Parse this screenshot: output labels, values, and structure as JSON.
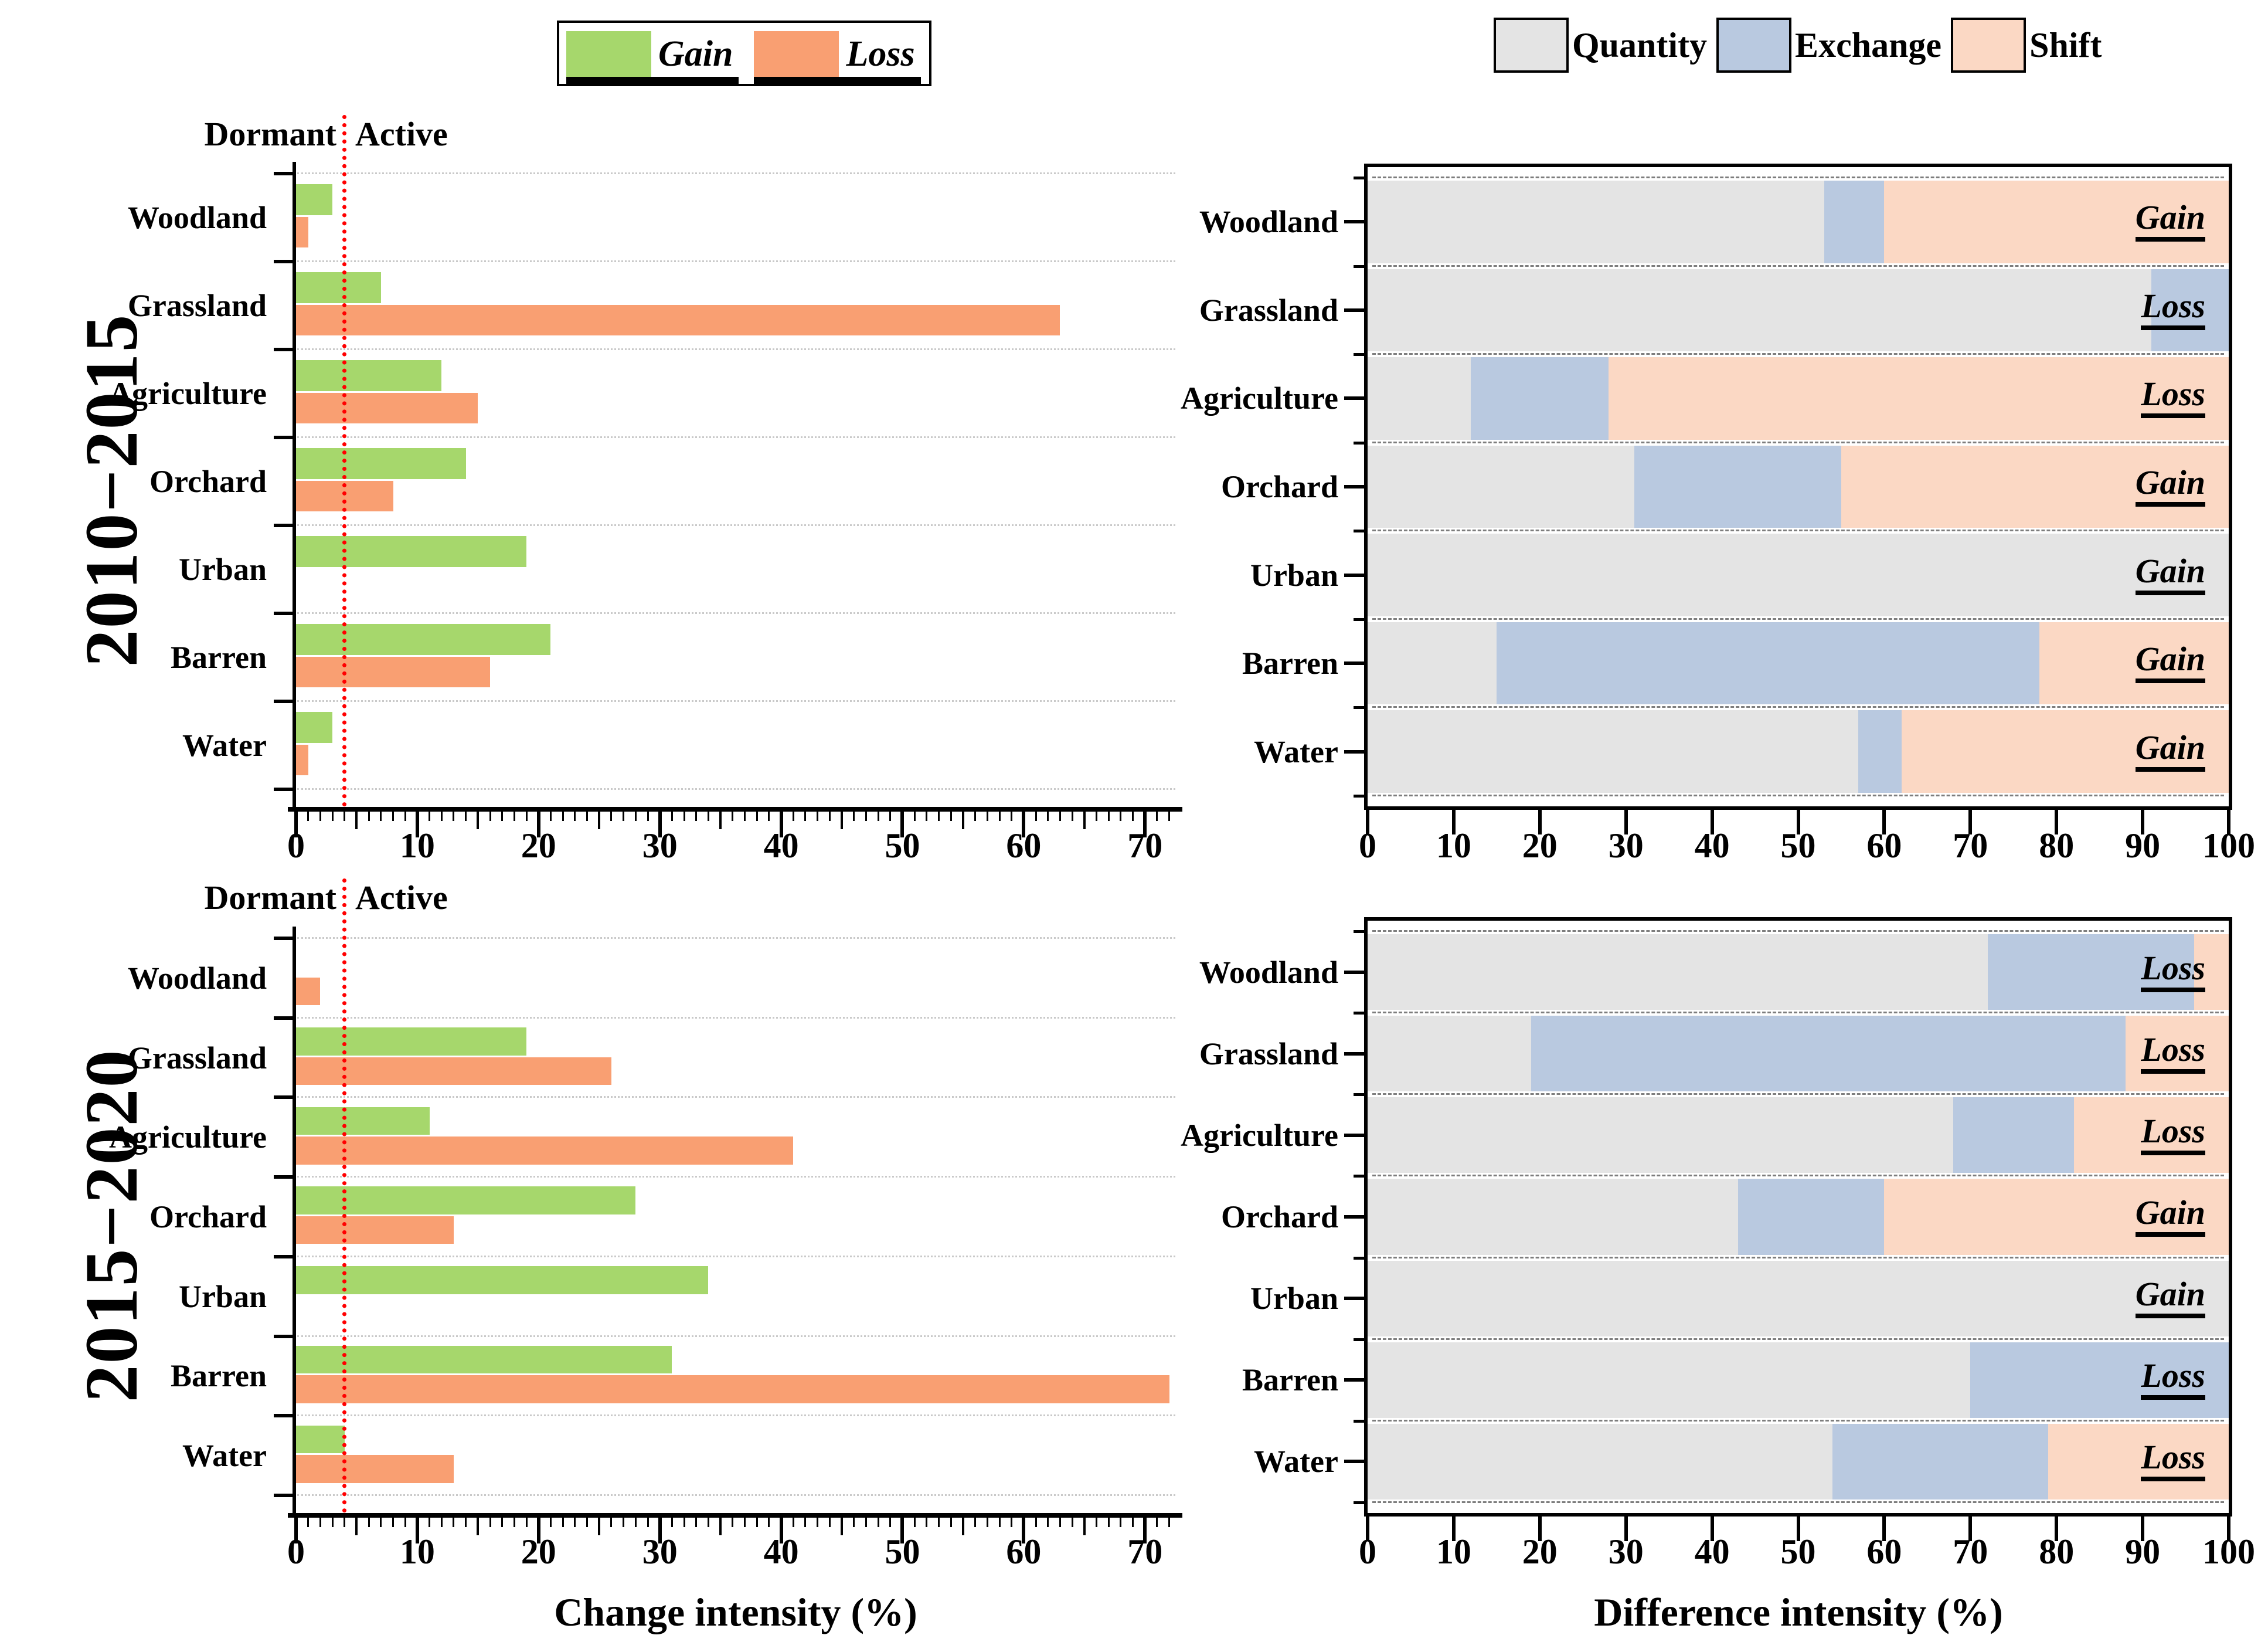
{
  "style": {
    "colors": {
      "gain": "#a6d76c",
      "loss": "#f99f72",
      "quantity": "#e4e4e4",
      "exchange": "#b9c9e0",
      "shift": "#fbd8c4",
      "threshold": "#ff0000",
      "grid_light": "#c9c9c9",
      "grid_dark": "#7d7d7d",
      "axis": "#000000",
      "background": "#ffffff"
    }
  },
  "chart_data": [
    {
      "type": "bar",
      "panel": "top-left",
      "title": "2010−2015",
      "xlabel": "Change intensity (%)",
      "categories": [
        "Woodland",
        "Grassland",
        "Agriculture",
        "Orchard",
        "Urban",
        "Barren",
        "Water"
      ],
      "series": [
        {
          "name": "Gain",
          "color_key": "gain",
          "values": [
            3,
            7,
            12,
            14,
            19,
            21,
            3
          ]
        },
        {
          "name": "Loss",
          "color_key": "loss",
          "values": [
            1,
            63,
            15,
            8,
            0,
            16,
            1
          ]
        }
      ],
      "xlim": [
        0,
        72.5
      ],
      "xticks": [
        0,
        10,
        20,
        30,
        40,
        50,
        60,
        70
      ],
      "grid": true,
      "legend_position": "top",
      "threshold": {
        "value": 4,
        "left_label": "Dormant",
        "right_label": "Active"
      }
    },
    {
      "type": "stacked-bar",
      "panel": "top-right",
      "title": "2010−2015",
      "xlabel": "Difference intensity (%)",
      "categories": [
        "Woodland",
        "Grassland",
        "Agriculture",
        "Orchard",
        "Urban",
        "Barren",
        "Water"
      ],
      "series": [
        {
          "name": "Quantity",
          "color_key": "quantity",
          "values": [
            53,
            91,
            12,
            31,
            100,
            15,
            57
          ]
        },
        {
          "name": "Exchange",
          "color_key": "exchange",
          "values": [
            7,
            9,
            16,
            24,
            0,
            63,
            5
          ]
        },
        {
          "name": "Shift",
          "color_key": "shift",
          "values": [
            40,
            0,
            72,
            45,
            0,
            22,
            38
          ]
        }
      ],
      "row_labels": [
        "Gain",
        "Loss",
        "Loss",
        "Gain",
        "Gain",
        "Gain",
        "Gain"
      ],
      "xlim": [
        0,
        100
      ],
      "xticks": [
        0,
        10,
        20,
        30,
        40,
        50,
        60,
        70,
        80,
        90,
        100
      ],
      "grid": true,
      "legend_position": "top"
    },
    {
      "type": "bar",
      "panel": "bottom-left",
      "title": "2015−2020",
      "xlabel": "Change intensity (%)",
      "categories": [
        "Woodland",
        "Grassland",
        "Agriculture",
        "Orchard",
        "Urban",
        "Barren",
        "Water"
      ],
      "series": [
        {
          "name": "Gain",
          "color_key": "gain",
          "values": [
            0,
            19,
            11,
            28,
            34,
            31,
            4
          ]
        },
        {
          "name": "Loss",
          "color_key": "loss",
          "values": [
            2,
            26,
            41,
            13,
            0,
            72,
            13
          ]
        }
      ],
      "xlim": [
        0,
        72.5
      ],
      "xticks": [
        0,
        10,
        20,
        30,
        40,
        50,
        60,
        70
      ],
      "grid": true,
      "threshold": {
        "value": 4,
        "left_label": "Dormant",
        "right_label": "Active"
      }
    },
    {
      "type": "stacked-bar",
      "panel": "bottom-right",
      "title": "2015−2020",
      "xlabel": "Difference intensity (%)",
      "categories": [
        "Woodland",
        "Grassland",
        "Agriculture",
        "Orchard",
        "Urban",
        "Barren",
        "Water"
      ],
      "series": [
        {
          "name": "Quantity",
          "color_key": "quantity",
          "values": [
            72,
            19,
            68,
            43,
            100,
            70,
            54
          ]
        },
        {
          "name": "Exchange",
          "color_key": "exchange",
          "values": [
            24,
            69,
            14,
            17,
            0,
            30,
            25
          ]
        },
        {
          "name": "Shift",
          "color_key": "shift",
          "values": [
            4,
            12,
            18,
            40,
            0,
            0,
            21
          ]
        }
      ],
      "row_labels": [
        "Loss",
        "Loss",
        "Loss",
        "Gain",
        "Gain",
        "Loss",
        "Loss"
      ],
      "xlim": [
        0,
        100
      ],
      "xticks": [
        0,
        10,
        20,
        30,
        40,
        50,
        60,
        70,
        80,
        90,
        100
      ],
      "grid": true
    }
  ]
}
